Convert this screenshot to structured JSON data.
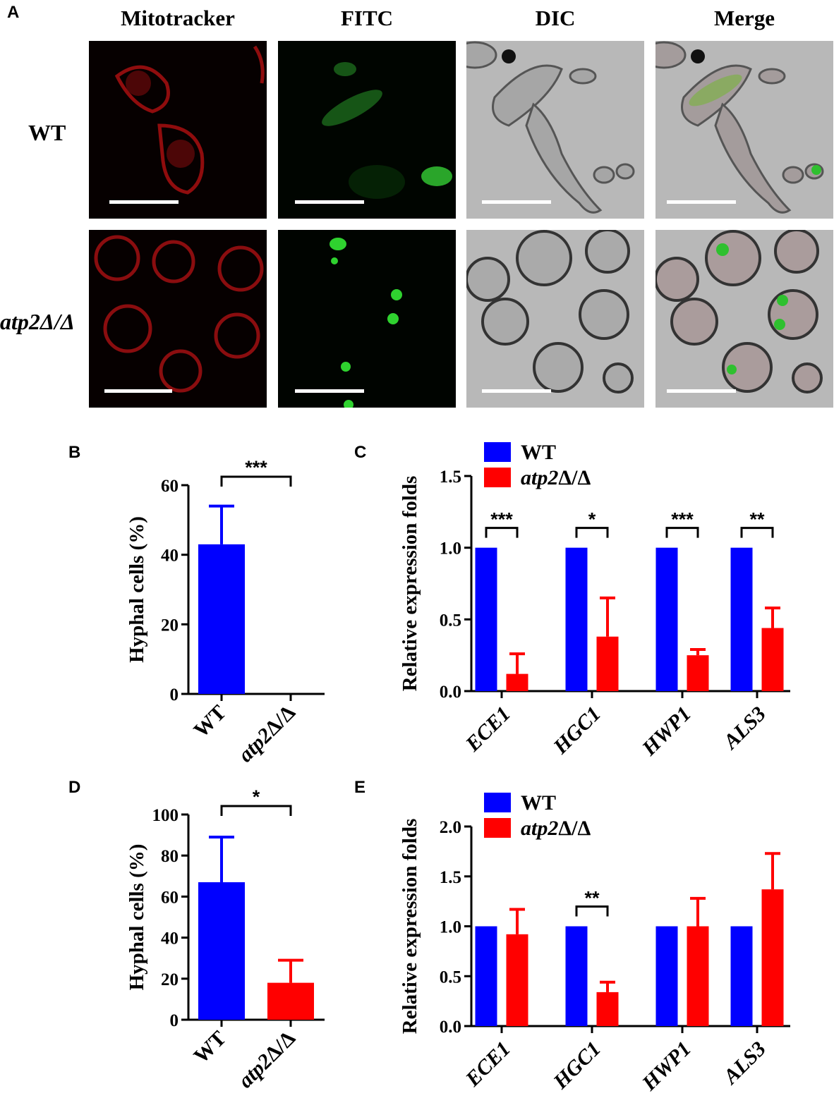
{
  "panel_a": {
    "letter": "A",
    "columns": [
      "Mitotracker",
      "FITC",
      "DIC",
      "Merge"
    ],
    "rows": [
      {
        "label": "WT",
        "italic": false
      },
      {
        "label": "atp2Δ/Δ",
        "italic": true
      }
    ]
  },
  "chart_data": [
    {
      "panel": "B",
      "type": "bar",
      "categories": [
        "WT",
        "atp2Δ/Δ"
      ],
      "values": [
        43,
        0
      ],
      "errors": [
        11,
        0
      ],
      "colors": [
        "#0000ff",
        "#ff0000"
      ],
      "ylabel": "Hyphal cells (%)",
      "ylim": [
        0,
        60
      ],
      "yticks": [
        0,
        20,
        40,
        60
      ],
      "significance": [
        {
          "between": [
            0,
            1
          ],
          "label": "***"
        }
      ]
    },
    {
      "panel": "C",
      "type": "bar",
      "categories": [
        "ECE1",
        "HGC1",
        "HWP1",
        "ALS3"
      ],
      "series": [
        {
          "name": "WT",
          "color": "#0000ff",
          "values": [
            1.0,
            1.0,
            1.0,
            1.0
          ],
          "errors": [
            0,
            0,
            0,
            0
          ]
        },
        {
          "name": "atp2Δ/Δ",
          "color": "#ff0000",
          "values": [
            0.12,
            0.38,
            0.25,
            0.44
          ],
          "errors": [
            0.14,
            0.27,
            0.04,
            0.14
          ]
        }
      ],
      "ylabel": "Relative expression folds",
      "ylim": [
        0,
        1.5
      ],
      "yticks": [
        "0.0",
        "0.5",
        "1.0",
        "1.5"
      ],
      "significance": [
        "***",
        "*",
        "***",
        "**"
      ],
      "legend": "top"
    },
    {
      "panel": "D",
      "type": "bar",
      "categories": [
        "WT",
        "atp2Δ/Δ"
      ],
      "values": [
        67,
        18
      ],
      "errors": [
        22,
        11
      ],
      "colors": [
        "#0000ff",
        "#ff0000"
      ],
      "ylabel": "Hyphal cells (%)",
      "ylim": [
        0,
        100
      ],
      "yticks": [
        0,
        20,
        40,
        60,
        80,
        100
      ],
      "significance": [
        {
          "between": [
            0,
            1
          ],
          "label": "*"
        }
      ]
    },
    {
      "panel": "E",
      "type": "bar",
      "categories": [
        "ECE1",
        "HGC1",
        "HWP1",
        "ALS3"
      ],
      "series": [
        {
          "name": "WT",
          "color": "#0000ff",
          "values": [
            1.0,
            1.0,
            1.0,
            1.0
          ],
          "errors": [
            0,
            0,
            0,
            0
          ]
        },
        {
          "name": "atp2Δ/Δ",
          "color": "#ff0000",
          "values": [
            0.92,
            0.34,
            1.0,
            1.37
          ],
          "errors": [
            0.25,
            0.1,
            0.28,
            0.36
          ]
        }
      ],
      "ylabel": "Relative expression folds",
      "ylim": [
        0,
        2.0
      ],
      "yticks": [
        "0.0",
        "0.5",
        "1.0",
        "1.5",
        "2.0"
      ],
      "significance": [
        "",
        "**",
        "",
        ""
      ],
      "legend": "top"
    }
  ]
}
